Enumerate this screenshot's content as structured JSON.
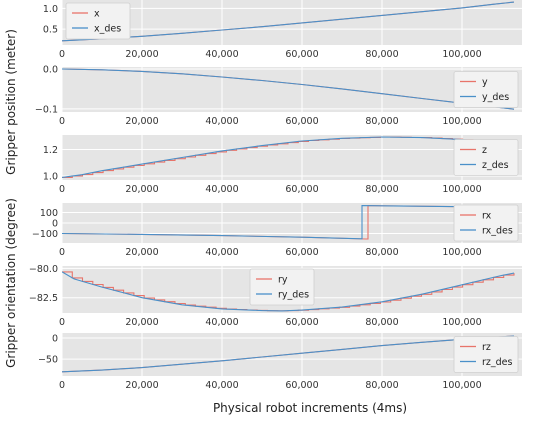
{
  "figure": {
    "ylabel_position": "Gripper position (meter)",
    "ylabel_orientation": "Gripper orientation (degree)",
    "xlabel": "Physical robot increments (4ms)"
  },
  "colors": {
    "actual": "#e8746a",
    "desired": "#4a90c9",
    "panel_bg": "#e5e5e5",
    "grid": "#ffffff"
  },
  "chart_data": [
    {
      "type": "line",
      "grid": true,
      "legend": "top-left",
      "xlim": [
        0,
        115000
      ],
      "ylim": [
        0.12,
        1.2
      ],
      "xticks": [
        0,
        20000,
        40000,
        60000,
        80000,
        100000
      ],
      "xtick_labels": [
        "0",
        "20,000",
        "40,000",
        "60,000",
        "80,000",
        "100,000"
      ],
      "yticks": [
        0.5,
        1.0
      ],
      "ytick_labels": [
        "0.5",
        "1.0"
      ],
      "series": [
        {
          "name": "x",
          "x": [
            0,
            10000,
            20000,
            30000,
            40000,
            50000,
            60000,
            70000,
            80000,
            90000,
            100000,
            108000,
            113000
          ],
          "y": [
            0.22,
            0.27,
            0.33,
            0.4,
            0.48,
            0.56,
            0.65,
            0.74,
            0.83,
            0.92,
            1.01,
            1.1,
            1.15
          ],
          "step": false
        },
        {
          "name": "x_des",
          "x": [
            0,
            10000,
            20000,
            30000,
            40000,
            50000,
            60000,
            70000,
            80000,
            90000,
            100000,
            108000,
            113000
          ],
          "y": [
            0.22,
            0.27,
            0.33,
            0.4,
            0.48,
            0.56,
            0.65,
            0.74,
            0.83,
            0.92,
            1.01,
            1.1,
            1.15
          ],
          "step": false
        }
      ]
    },
    {
      "type": "line",
      "grid": true,
      "legend": "right",
      "xlim": [
        0,
        115000
      ],
      "ylim": [
        -0.108,
        0.005
      ],
      "xticks": [
        0,
        20000,
        40000,
        60000,
        80000,
        100000
      ],
      "xtick_labels": [
        "0",
        "20,000",
        "40,000",
        "60,000",
        "80,000",
        "100,000"
      ],
      "yticks": [
        0.0,
        -0.1
      ],
      "ytick_labels": [
        "0.0",
        "−0.1"
      ],
      "series": [
        {
          "name": "y",
          "x": [
            0,
            10000,
            20000,
            30000,
            40000,
            50000,
            60000,
            70000,
            80000,
            90000,
            100000,
            108000,
            113000
          ],
          "y": [
            0.0,
            -0.002,
            -0.006,
            -0.012,
            -0.02,
            -0.029,
            -0.039,
            -0.05,
            -0.062,
            -0.074,
            -0.086,
            -0.095,
            -0.101
          ],
          "step": false
        },
        {
          "name": "y_des",
          "x": [
            0,
            10000,
            20000,
            30000,
            40000,
            50000,
            60000,
            70000,
            80000,
            90000,
            100000,
            108000,
            113000
          ],
          "y": [
            0.0,
            -0.002,
            -0.006,
            -0.012,
            -0.02,
            -0.029,
            -0.039,
            -0.05,
            -0.062,
            -0.074,
            -0.086,
            -0.095,
            -0.101
          ],
          "step": false
        }
      ]
    },
    {
      "type": "line",
      "grid": true,
      "legend": "right",
      "xlim": [
        0,
        115000
      ],
      "ylim": [
        0.97,
        1.31
      ],
      "xticks": [
        0,
        20000,
        40000,
        60000,
        80000,
        100000
      ],
      "xtick_labels": [
        "0",
        "20,000",
        "40,000",
        "60,000",
        "80,000",
        "100,000"
      ],
      "yticks": [
        1.0,
        1.2
      ],
      "ytick_labels": [
        "1.0",
        "1.2"
      ],
      "series": [
        {
          "name": "z",
          "x": [
            0,
            5000,
            10000,
            20000,
            30000,
            40000,
            50000,
            60000,
            70000,
            80000,
            90000,
            100000,
            113000
          ],
          "y": [
            0.99,
            1.01,
            1.04,
            1.09,
            1.14,
            1.19,
            1.23,
            1.265,
            1.285,
            1.295,
            1.29,
            1.275,
            1.245
          ],
          "step": true
        },
        {
          "name": "z_des",
          "x": [
            0,
            5000,
            10000,
            20000,
            30000,
            40000,
            50000,
            60000,
            70000,
            80000,
            90000,
            100000,
            113000
          ],
          "y": [
            0.99,
            1.01,
            1.04,
            1.09,
            1.14,
            1.19,
            1.23,
            1.265,
            1.285,
            1.295,
            1.29,
            1.275,
            1.245
          ],
          "step": false
        }
      ]
    },
    {
      "type": "line",
      "grid": true,
      "legend": "right",
      "xlim": [
        0,
        115000
      ],
      "ylim": [
        -190,
        190
      ],
      "xticks": [
        0,
        20000,
        40000,
        60000,
        80000,
        100000
      ],
      "xtick_labels": [
        "0",
        "20,000",
        "40,000",
        "60,000",
        "80,000",
        "100,000"
      ],
      "yticks": [
        100,
        0,
        -100
      ],
      "ytick_labels": [
        "100",
        "0",
        "−100"
      ],
      "series": [
        {
          "name": "rx",
          "x": [
            0,
            20000,
            40000,
            60000,
            76000,
            76500,
            76500,
            100000,
            113000
          ],
          "y": [
            -100,
            -108,
            -120,
            -135,
            -152,
            -152,
            165,
            155,
            150
          ],
          "step": false
        },
        {
          "name": "rx_des",
          "x": [
            0,
            20000,
            40000,
            60000,
            75000,
            75000,
            100000,
            113000
          ],
          "y": [
            -100,
            -108,
            -120,
            -135,
            -150,
            165,
            155,
            150
          ],
          "step": false
        }
      ]
    },
    {
      "type": "line",
      "grid": true,
      "legend": "top-center",
      "xlim": [
        0,
        115000
      ],
      "ylim": [
        -83.8,
        -79.8
      ],
      "xticks": [
        0,
        20000,
        40000,
        60000,
        80000,
        100000
      ],
      "xtick_labels": [
        "0",
        "20,000",
        "40,000",
        "60,000",
        "80,000",
        "100,000"
      ],
      "yticks": [
        -80.0,
        -82.5
      ],
      "ytick_labels": [
        "−80.0",
        "−82.5"
      ],
      "series": [
        {
          "name": "ry",
          "x": [
            0,
            3000,
            10000,
            20000,
            30000,
            40000,
            50000,
            55000,
            60000,
            70000,
            80000,
            90000,
            100000,
            110000,
            113000
          ],
          "y": [
            -80.3,
            -80.9,
            -81.6,
            -82.5,
            -83.1,
            -83.45,
            -83.6,
            -83.62,
            -83.55,
            -83.3,
            -82.85,
            -82.2,
            -81.4,
            -80.6,
            -80.4
          ],
          "step": true
        },
        {
          "name": "ry_des",
          "x": [
            0,
            3000,
            10000,
            20000,
            30000,
            40000,
            50000,
            55000,
            60000,
            70000,
            80000,
            90000,
            100000,
            110000,
            113000
          ],
          "y": [
            -80.3,
            -80.9,
            -81.6,
            -82.5,
            -83.1,
            -83.45,
            -83.6,
            -83.62,
            -83.55,
            -83.3,
            -82.85,
            -82.2,
            -81.4,
            -80.6,
            -80.4
          ],
          "step": false
        }
      ]
    },
    {
      "type": "line",
      "grid": true,
      "legend": "right",
      "xlim": [
        0,
        115000
      ],
      "ylim": [
        -90,
        12
      ],
      "xticks": [
        0,
        20000,
        40000,
        60000,
        80000,
        100000
      ],
      "xtick_labels": [
        "0",
        "20,000",
        "40,000",
        "60,000",
        "80,000",
        "100,000"
      ],
      "yticks": [
        0,
        -50
      ],
      "ytick_labels": [
        "0",
        "−50"
      ],
      "series": [
        {
          "name": "rz",
          "x": [
            0,
            10000,
            20000,
            30000,
            40000,
            50000,
            60000,
            70000,
            80000,
            90000,
            100000,
            110000,
            113000
          ],
          "y": [
            -80,
            -76,
            -70,
            -62,
            -54,
            -45,
            -36,
            -27,
            -18,
            -10,
            -3,
            3,
            5
          ],
          "step": false
        },
        {
          "name": "rz_des",
          "x": [
            0,
            10000,
            20000,
            30000,
            40000,
            50000,
            60000,
            70000,
            80000,
            90000,
            100000,
            110000,
            113000
          ],
          "y": [
            -80,
            -76,
            -70,
            -62,
            -54,
            -45,
            -36,
            -27,
            -18,
            -10,
            -3,
            3,
            5
          ],
          "step": false
        }
      ]
    }
  ]
}
